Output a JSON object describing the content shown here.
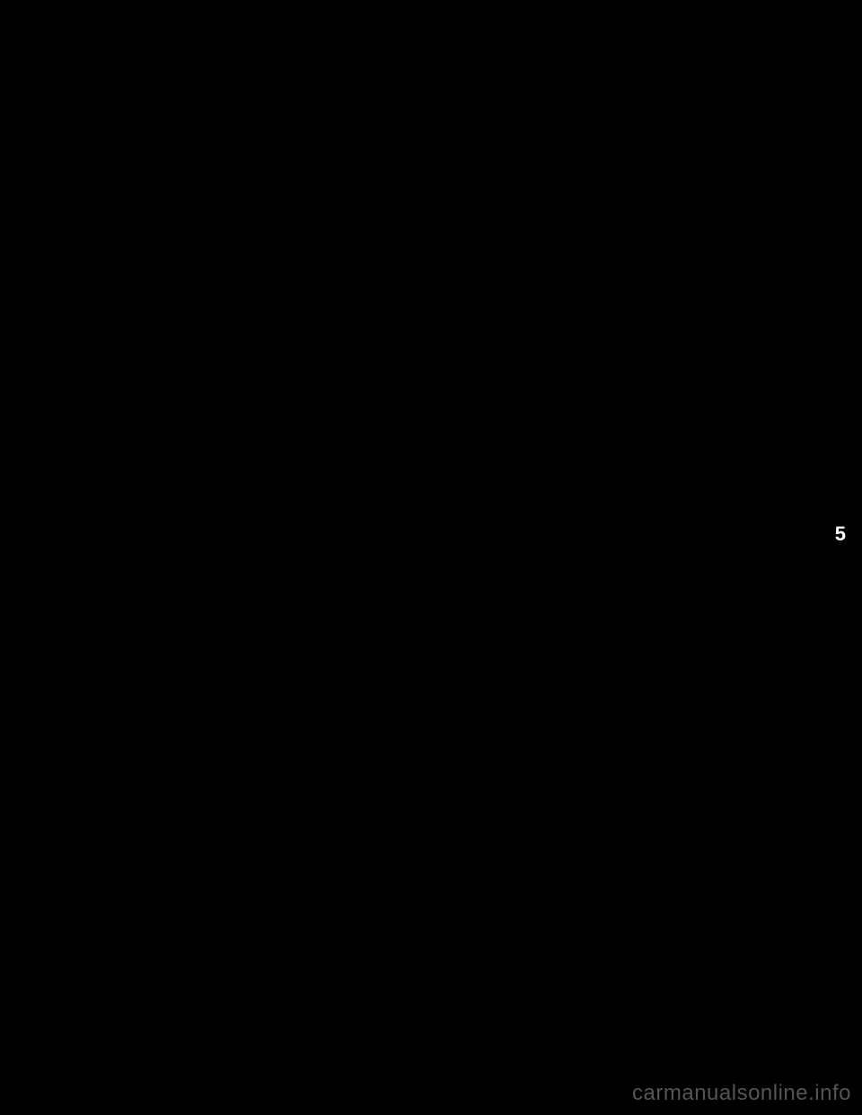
{
  "page": {
    "section_number": "5",
    "watermark": "carmanualsonline.info",
    "background_color": "#000000",
    "text_color": "#ffffff",
    "watermark_color": "#555555",
    "section_number_fontsize": 22,
    "watermark_fontsize": 24
  }
}
